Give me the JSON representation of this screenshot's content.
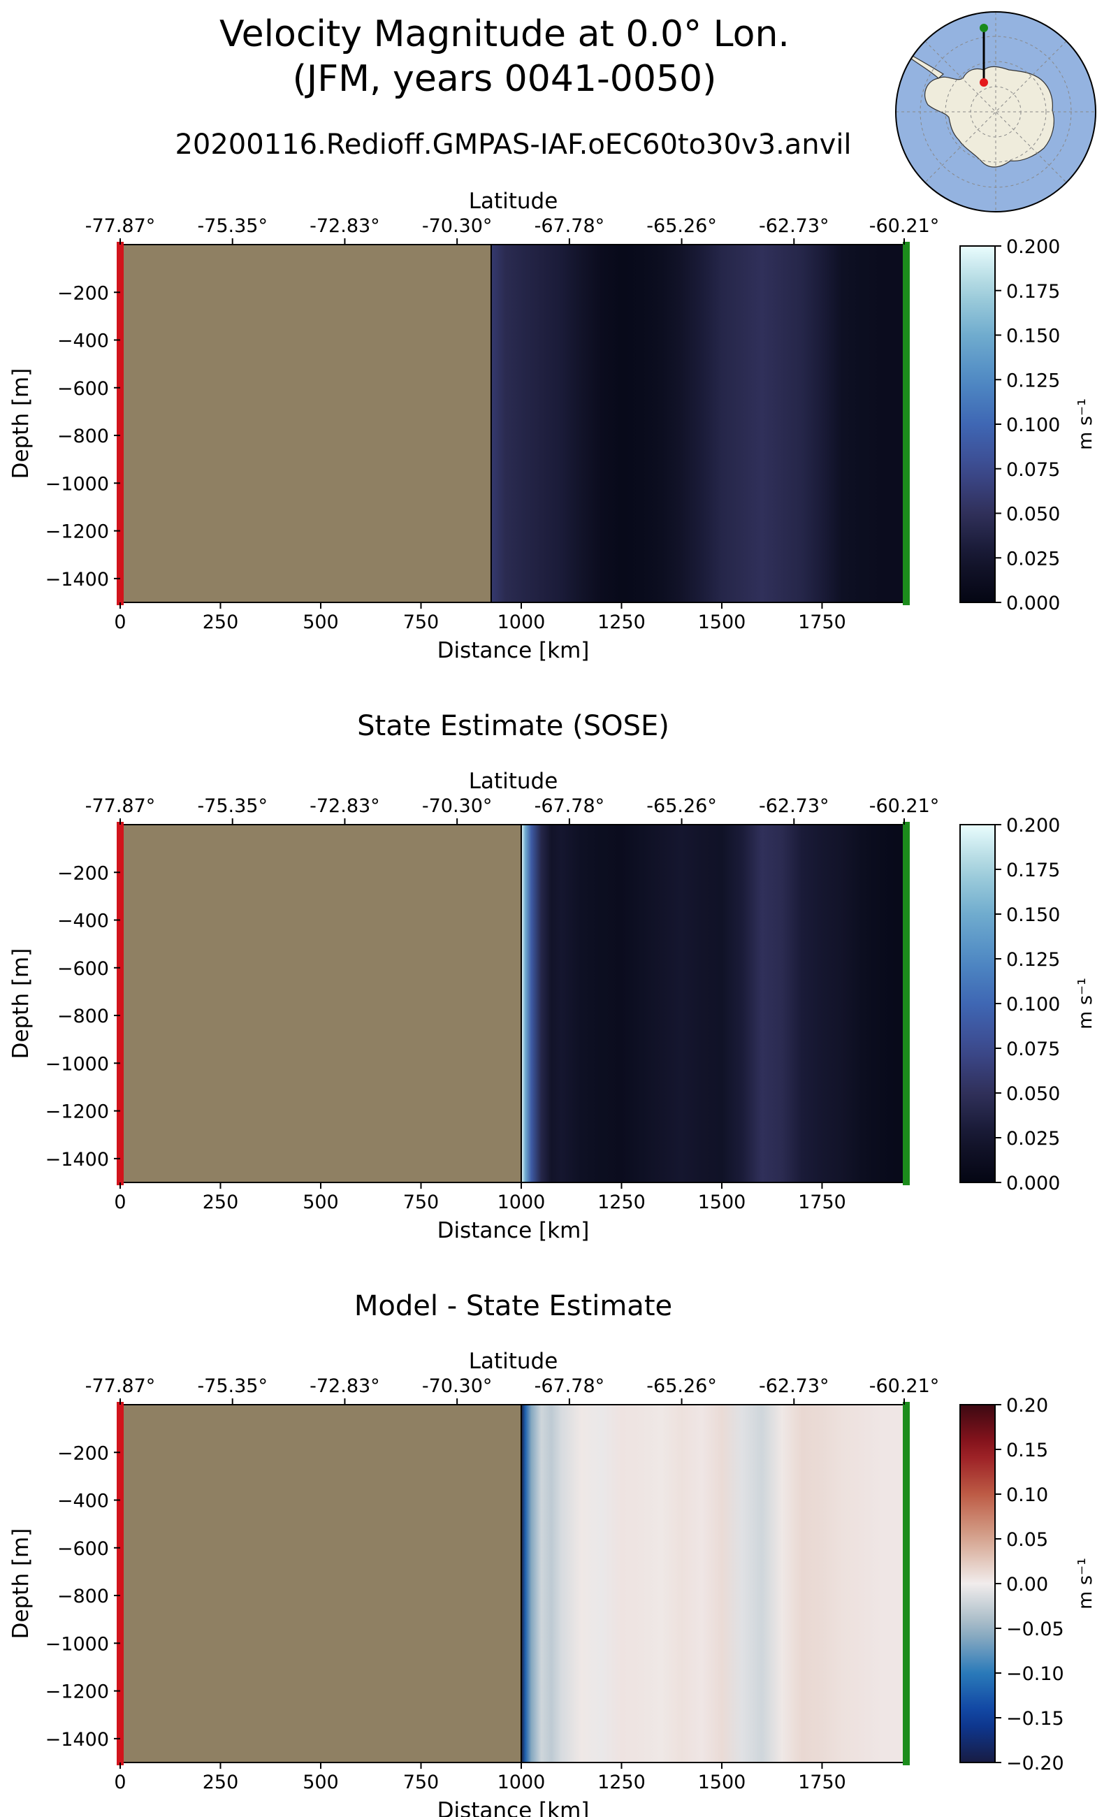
{
  "figure": {
    "title_line1": "Velocity Magnitude at 0.0° Lon.",
    "title_line2": "(JFM, years 0041-0050)"
  },
  "inset_map": {
    "type": "polar-stereographic",
    "region": "Antarctica",
    "land_color": "#efecdc",
    "ocean_color": "#94b3e0",
    "transect_start_color": "#e41a1c",
    "transect_end_color": "#1a8a1a"
  },
  "chart_data": [
    {
      "type": "heatmap",
      "title": "20200116.Redioff.GMPAS-IAF.oEC60to30v3.anvil",
      "xlabel": "Distance [km]",
      "ylabel": "Depth [m]",
      "top_axis_label": "Latitude",
      "xlim": [
        0,
        1960
      ],
      "ylim": [
        -1500,
        0
      ],
      "x_ticks": [
        0,
        250,
        500,
        750,
        1000,
        1250,
        1500,
        1750
      ],
      "y_ticks": [
        -200,
        -400,
        -600,
        -800,
        -1000,
        -1200,
        -1400
      ],
      "latitude_ticks": [
        "-77.87°",
        "-75.35°",
        "-72.83°",
        "-70.30°",
        "-67.78°",
        "-65.26°",
        "-62.73°",
        "-60.21°"
      ],
      "land_end_km": 925,
      "colorbar": {
        "label": "m s⁻¹",
        "min": 0.0,
        "max": 0.2,
        "ticks": [
          "0.000",
          "0.025",
          "0.050",
          "0.075",
          "0.100",
          "0.125",
          "0.150",
          "0.175",
          "0.200"
        ],
        "colormap": "ice"
      },
      "profile_km": [
        925,
        960,
        1000,
        1050,
        1100,
        1150,
        1200,
        1250,
        1300,
        1350,
        1400,
        1450,
        1500,
        1550,
        1600,
        1650,
        1700,
        1750,
        1800,
        1850,
        1900,
        1960
      ],
      "profile_values": [
        0.06,
        0.045,
        0.04,
        0.035,
        0.03,
        0.02,
        0.01,
        0.006,
        0.008,
        0.012,
        0.02,
        0.03,
        0.04,
        0.045,
        0.05,
        0.045,
        0.04,
        0.03,
        0.015,
        0.012,
        0.01,
        0.01
      ]
    },
    {
      "type": "heatmap",
      "title": "State Estimate (SOSE)",
      "xlabel": "Distance [km]",
      "ylabel": "Depth [m]",
      "top_axis_label": "Latitude",
      "xlim": [
        0,
        1960
      ],
      "ylim": [
        -1500,
        0
      ],
      "x_ticks": [
        0,
        250,
        500,
        750,
        1000,
        1250,
        1500,
        1750
      ],
      "y_ticks": [
        -200,
        -400,
        -600,
        -800,
        -1000,
        -1200,
        -1400
      ],
      "latitude_ticks": [
        "-77.87°",
        "-75.35°",
        "-72.83°",
        "-70.30°",
        "-67.78°",
        "-65.26°",
        "-62.73°",
        "-60.21°"
      ],
      "land_end_km": 1000,
      "colorbar": {
        "label": "m s⁻¹",
        "min": 0.0,
        "max": 0.2,
        "ticks": [
          "0.000",
          "0.025",
          "0.050",
          "0.075",
          "0.100",
          "0.125",
          "0.150",
          "0.175",
          "0.200"
        ],
        "colormap": "ice"
      },
      "profile_km": [
        1000,
        1010,
        1025,
        1050,
        1075,
        1100,
        1150,
        1200,
        1250,
        1300,
        1350,
        1400,
        1450,
        1500,
        1550,
        1600,
        1650,
        1700,
        1750,
        1800,
        1850,
        1900,
        1960
      ],
      "profile_values": [
        0.2,
        0.15,
        0.09,
        0.04,
        0.02,
        0.025,
        0.015,
        0.012,
        0.01,
        0.015,
        0.02,
        0.025,
        0.02,
        0.018,
        0.03,
        0.05,
        0.045,
        0.03,
        0.025,
        0.02,
        0.012,
        0.008,
        0.005
      ]
    },
    {
      "type": "heatmap",
      "title": "Model - State Estimate",
      "xlabel": "Distance [km]",
      "ylabel": "Depth [m]",
      "top_axis_label": "Latitude",
      "xlim": [
        0,
        1960
      ],
      "ylim": [
        -1500,
        0
      ],
      "x_ticks": [
        0,
        250,
        500,
        750,
        1000,
        1250,
        1500,
        1750
      ],
      "y_ticks": [
        -200,
        -400,
        -600,
        -800,
        -1000,
        -1200,
        -1400
      ],
      "latitude_ticks": [
        "-77.87°",
        "-75.35°",
        "-72.83°",
        "-70.30°",
        "-67.78°",
        "-65.26°",
        "-62.73°",
        "-60.21°"
      ],
      "land_end_km": 1000,
      "colorbar": {
        "label": "m s⁻¹",
        "min": -0.2,
        "max": 0.2,
        "ticks": [
          "−0.20",
          "−0.15",
          "−0.10",
          "−0.05",
          "0.00",
          "0.05",
          "0.10",
          "0.15",
          "0.20"
        ],
        "colormap": "balance"
      },
      "profile_km": [
        1000,
        1010,
        1025,
        1050,
        1075,
        1100,
        1150,
        1200,
        1250,
        1300,
        1350,
        1400,
        1450,
        1500,
        1550,
        1600,
        1650,
        1700,
        1750,
        1800,
        1850,
        1900,
        1960
      ],
      "profile_values": [
        -0.2,
        -0.12,
        -0.06,
        -0.02,
        -0.03,
        -0.015,
        0.003,
        -0.004,
        0.006,
        0.005,
        0.003,
        0.008,
        0.004,
        0.012,
        -0.01,
        -0.02,
        0.003,
        0.014,
        0.012,
        0.008,
        0.006,
        0.004,
        0.004
      ]
    }
  ]
}
